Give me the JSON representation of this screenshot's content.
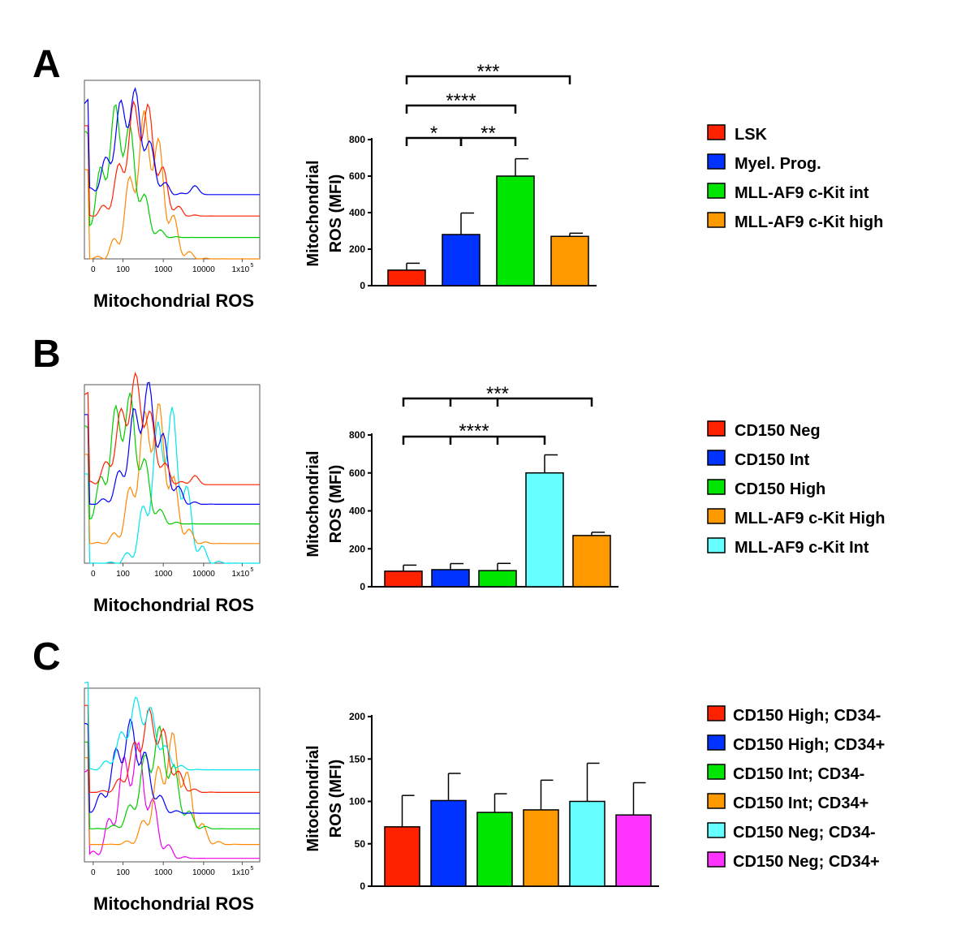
{
  "figure": {
    "panels": [
      {
        "label": "A",
        "histogram": {
          "xlabel": "Mitochondrial ROS",
          "ticks": [
            "0",
            "100",
            "1000",
            "10000",
            "1x10",
            "5"
          ],
          "trace_colors": [
            "#0000ff",
            "#ff2200",
            "#00cc00",
            "#ff8800"
          ]
        },
        "bar": {
          "ylabel_line1": "Mitochondrial",
          "ylabel_line2": "ROS (MFI)",
          "yticks": [
            "0",
            "200",
            "400",
            "600",
            "800"
          ],
          "brackets": [
            {
              "label": "***",
              "from": 0,
              "to": 3,
              "mid": []
            },
            {
              "label": "****",
              "from": 0,
              "to": 2,
              "mid": []
            },
            {
              "label": "*",
              "from": 0,
              "to": 1,
              "mid": []
            },
            {
              "label": "**",
              "from": 1,
              "to": 2,
              "mid": []
            }
          ]
        },
        "legend": [
          "LSK",
          "Myel. Prog.",
          "MLL-AF9 c-Kit int",
          "MLL-AF9 c-Kit high"
        ]
      },
      {
        "label": "B",
        "histogram": {
          "xlabel": "Mitochondrial ROS",
          "ticks": [
            "0",
            "100",
            "1000",
            "10000",
            "1x10",
            "5"
          ],
          "trace_colors": [
            "#ff2200",
            "#0000ff",
            "#00cc00",
            "#ff8800",
            "#00e5ee"
          ]
        },
        "bar": {
          "ylabel_line1": "Mitochondrial",
          "ylabel_line2": "ROS (MFI)",
          "yticks": [
            "0",
            "200",
            "400",
            "600",
            "800"
          ],
          "brackets": [
            {
              "label": "***",
              "from": 0,
              "to": 4,
              "mid": [
                1,
                2
              ]
            },
            {
              "label": "****",
              "from": 0,
              "to": 3,
              "mid": [
                1,
                2
              ]
            }
          ]
        },
        "legend": [
          "CD150 Neg",
          "CD150 Int",
          "CD150 High",
          "MLL-AF9 c-Kit High",
          "MLL-AF9 c-Kit Int"
        ]
      },
      {
        "label": "C",
        "histogram": {
          "xlabel": "Mitochondrial ROS",
          "ticks": [
            "0",
            "100",
            "1000",
            "10000",
            "1x10",
            "5"
          ],
          "trace_colors": [
            "#00e5ee",
            "#ff2200",
            "#0000ff",
            "#00cc00",
            "#ff8800",
            "#ee00ee"
          ]
        },
        "bar": {
          "ylabel_line1": "Mitochondrial",
          "ylabel_line2": "ROS (MFI)",
          "yticks": [
            "0",
            "50",
            "100",
            "150",
            "200"
          ],
          "brackets": []
        },
        "legend": [
          "CD150 High; CD34-",
          "CD150 High; CD34+",
          "CD150 Int; CD34-",
          "CD150 Int; CD34+",
          "CD150 Neg; CD34-",
          "CD150 Neg; CD34+"
        ]
      }
    ]
  },
  "chart_data": [
    {
      "type": "bar",
      "panel": "A",
      "title": "",
      "xlabel": "",
      "ylabel": "Mitochondrial ROS (MFI)",
      "categories": [
        "LSK",
        "Myel. Prog.",
        "MLL-AF9 c-Kit int",
        "MLL-AF9 c-Kit high"
      ],
      "values": [
        85,
        280,
        600,
        270
      ],
      "errors": [
        38,
        118,
        95,
        17
      ],
      "colors": [
        "#ff2200",
        "#0033ff",
        "#00e600",
        "#ff9900"
      ],
      "ylim": [
        0,
        800
      ],
      "significance": [
        {
          "groups": [
            0,
            3
          ],
          "label": "***"
        },
        {
          "groups": [
            0,
            2
          ],
          "label": "****"
        },
        {
          "groups": [
            0,
            1
          ],
          "label": "*"
        },
        {
          "groups": [
            1,
            2
          ],
          "label": "**"
        }
      ]
    },
    {
      "type": "bar",
      "panel": "B",
      "title": "",
      "xlabel": "",
      "ylabel": "Mitochondrial ROS (MFI)",
      "categories": [
        "CD150 Neg",
        "CD150 Int",
        "CD150 High",
        "MLL-AF9 c-Kit Int",
        "MLL-AF9 c-Kit High"
      ],
      "values": [
        82,
        90,
        85,
        600,
        270
      ],
      "errors": [
        32,
        32,
        38,
        95,
        17
      ],
      "colors": [
        "#ff2200",
        "#0033ff",
        "#00e600",
        "#66ffff",
        "#ff9900"
      ],
      "ylim": [
        0,
        800
      ],
      "significance": [
        {
          "groups": [
            0,
            1,
            2,
            4
          ],
          "label": "***"
        },
        {
          "groups": [
            0,
            1,
            2,
            3
          ],
          "label": "****"
        }
      ]
    },
    {
      "type": "bar",
      "panel": "C",
      "title": "",
      "xlabel": "",
      "ylabel": "Mitochondrial ROS (MFI)",
      "categories": [
        "CD150 High; CD34-",
        "CD150 High; CD34+",
        "CD150 Int; CD34-",
        "CD150 Int; CD34+",
        "CD150 Neg; CD34-",
        "CD150 Neg; CD34+"
      ],
      "values": [
        70,
        101,
        87,
        90,
        100,
        84
      ],
      "errors": [
        37,
        32,
        22,
        35,
        45,
        38
      ],
      "colors": [
        "#ff2200",
        "#0033ff",
        "#00e600",
        "#ff9900",
        "#66ffff",
        "#ff33ff"
      ],
      "ylim": [
        0,
        200
      ],
      "significance": []
    }
  ]
}
